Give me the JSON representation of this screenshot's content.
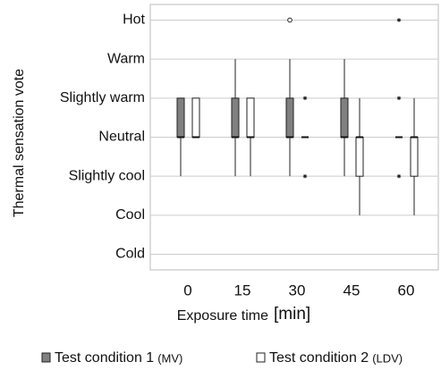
{
  "chart_data": {
    "type": "boxplot",
    "ylabel": "Thermal sensation vote",
    "xlabel": "Exposure time",
    "xunit": "[min]",
    "categories": [
      "0",
      "15",
      "30",
      "45",
      "60"
    ],
    "ylim": [
      -3.4,
      3.4
    ],
    "yticks": [
      {
        "value": 3,
        "label": "Hot"
      },
      {
        "value": 2,
        "label": "Warm"
      },
      {
        "value": 1,
        "label": "Slightly warm"
      },
      {
        "value": 0,
        "label": "Neutral"
      },
      {
        "value": -1,
        "label": "Slightly cool"
      },
      {
        "value": -2,
        "label": "Cool"
      },
      {
        "value": -3,
        "label": "Cold"
      }
    ],
    "grid": true,
    "series": [
      {
        "name": "Test condition 1",
        "note": "(MV)",
        "color": "#808080",
        "boxes": [
          {
            "min": -1,
            "q1": 0,
            "median": 0,
            "q3": 1,
            "max": 1,
            "outliers": [],
            "extremes": []
          },
          {
            "min": -1,
            "q1": 0,
            "median": 0,
            "q3": 1,
            "max": 2,
            "outliers": [],
            "extremes": []
          },
          {
            "min": -1,
            "q1": 0,
            "median": 0,
            "q3": 1,
            "max": 2,
            "outliers": [
              3
            ],
            "extremes": []
          },
          {
            "min": -1,
            "q1": 0,
            "median": 0,
            "q3": 1,
            "max": 2,
            "outliers": [],
            "extremes": []
          },
          {
            "min": 0,
            "q1": 0,
            "median": 0,
            "q3": 0,
            "max": 0,
            "outliers": [],
            "extremes": [
              3,
              1,
              -1
            ]
          }
        ]
      },
      {
        "name": "Test condition 2",
        "note": "(LDV)",
        "color": "#ffffff",
        "boxes": [
          {
            "min": 0,
            "q1": 0,
            "median": 0,
            "q3": 1,
            "max": 1,
            "outliers": [],
            "extremes": []
          },
          {
            "min": -1,
            "q1": 0,
            "median": 0,
            "q3": 1,
            "max": 1,
            "outliers": [],
            "extremes": []
          },
          {
            "min": 0,
            "q1": 0,
            "median": 0,
            "q3": 0,
            "max": 0,
            "outliers": [],
            "extremes": [
              1,
              -1
            ]
          },
          {
            "min": -2,
            "q1": -1,
            "median": 0,
            "q3": 0,
            "max": 1,
            "outliers": [],
            "extremes": []
          },
          {
            "min": -2,
            "q1": -1,
            "median": 0,
            "q3": 0,
            "max": 1,
            "outliers": [],
            "extremes": []
          }
        ]
      }
    ]
  }
}
